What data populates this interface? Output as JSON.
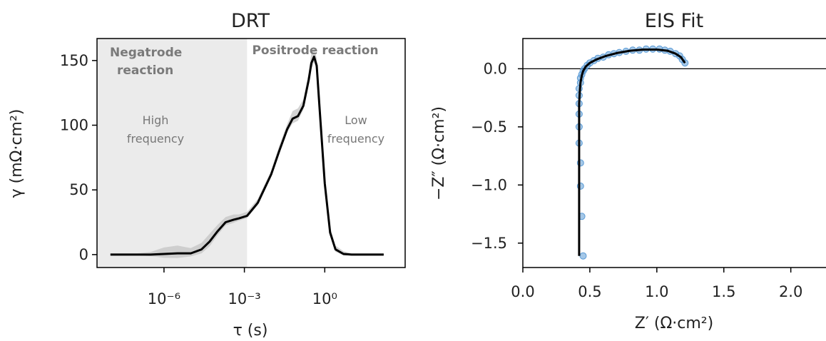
{
  "chart_data": [
    {
      "type": "line",
      "title": "DRT",
      "xlabel": "τ (s)",
      "ylabel": "γ (mΩ·cm²)",
      "xscale": "log",
      "xlim_log10": [
        -8.5,
        3
      ],
      "ylim": [
        -10,
        167
      ],
      "xticks": [
        {
          "log10": -6,
          "label": "10⁻⁶"
        },
        {
          "log10": -3,
          "label": "10⁻³"
        },
        {
          "log10": 0,
          "label": "10⁰"
        }
      ],
      "yticks": [
        0,
        50,
        100,
        150
      ],
      "regions": [
        {
          "name": "Negatrode reaction",
          "note": [
            "High",
            "frequency"
          ],
          "x_log10": [
            -8.5,
            -2.9
          ],
          "shaded": true
        },
        {
          "name": "Positrode reaction",
          "note": [
            "Low",
            "frequency"
          ],
          "x_log10": [
            -2.9,
            3
          ],
          "shaded": false
        }
      ],
      "series": [
        {
          "color": "#000000",
          "uncertainty_color": "#c4c4c4",
          "x_log10": [
            -8,
            -7,
            -6.5,
            -6,
            -5.5,
            -5,
            -4.6,
            -4.3,
            -4,
            -3.7,
            -3.4,
            -3.2,
            -2.9,
            -2.5,
            -2,
            -1.7,
            -1.4,
            -1.2,
            -1.0,
            -0.8,
            -0.6,
            -0.5,
            -0.4,
            -0.3,
            -0.2,
            0,
            0.2,
            0.4,
            0.7,
            1,
            1.5,
            2.2
          ],
          "values": [
            0,
            0,
            0,
            0.5,
            1,
            1,
            4,
            10,
            18,
            25,
            27,
            28,
            30,
            40,
            62,
            80,
            97,
            105,
            107,
            115,
            135,
            148,
            153,
            146,
            115,
            55,
            17,
            4,
            0.5,
            0,
            0,
            0
          ],
          "band": [
            1,
            1,
            2,
            5,
            6,
            4,
            5,
            6,
            5,
            4,
            4,
            3,
            3,
            3,
            3,
            4,
            4,
            6,
            6,
            5,
            6,
            8,
            7,
            6,
            6,
            5,
            4,
            3,
            2,
            1,
            1,
            1
          ]
        }
      ]
    },
    {
      "type": "scatter",
      "title": "EIS Fit",
      "xlabel": "Z′ (Ω·cm²)",
      "ylabel": "−Z″ (Ω·cm²)",
      "xlim": [
        0,
        2.3
      ],
      "ylim": [
        -1.71,
        0.26
      ],
      "xticks": [
        0.0,
        0.5,
        1.0,
        1.5,
        2.0
      ],
      "xtick_labels": [
        "0.0",
        "0.5",
        "1.0",
        "1.5",
        "2.0"
      ],
      "yticks": [
        0.0,
        -0.5,
        -1.0,
        -1.5
      ],
      "ytick_labels": [
        "0.0",
        "−0.5",
        "−1.0",
        "−1.5"
      ],
      "hline_y": 0,
      "series": [
        {
          "name": "",
          "kind": "scatter",
          "color": "#5b9bd5",
          "points": [
            [
              0.45,
              -1.61
            ],
            [
              0.44,
              -1.27
            ],
            [
              0.43,
              -1.01
            ],
            [
              0.43,
              -0.81
            ],
            [
              0.42,
              -0.64
            ],
            [
              0.42,
              -0.5
            ],
            [
              0.42,
              -0.39
            ],
            [
              0.42,
              -0.3
            ],
            [
              0.42,
              -0.23
            ],
            [
              0.42,
              -0.17
            ],
            [
              0.43,
              -0.12
            ],
            [
              0.43,
              -0.08
            ],
            [
              0.44,
              -0.05
            ],
            [
              0.45,
              -0.02
            ],
            [
              0.46,
              0.0
            ],
            [
              0.48,
              0.03
            ],
            [
              0.5,
              0.05
            ],
            [
              0.53,
              0.07
            ],
            [
              0.56,
              0.09
            ],
            [
              0.6,
              0.1
            ],
            [
              0.64,
              0.12
            ],
            [
              0.68,
              0.13
            ],
            [
              0.72,
              0.14
            ],
            [
              0.77,
              0.15
            ],
            [
              0.82,
              0.16
            ],
            [
              0.87,
              0.16
            ],
            [
              0.92,
              0.17
            ],
            [
              0.97,
              0.17
            ],
            [
              1.02,
              0.17
            ],
            [
              1.06,
              0.16
            ],
            [
              1.1,
              0.15
            ],
            [
              1.14,
              0.13
            ],
            [
              1.17,
              0.11
            ],
            [
              1.19,
              0.08
            ],
            [
              1.21,
              0.05
            ]
          ]
        },
        {
          "name": "",
          "kind": "line",
          "color": "#000000",
          "points": [
            [
              0.42,
              -1.61
            ],
            [
              0.42,
              -1.2
            ],
            [
              0.42,
              -0.8
            ],
            [
              0.42,
              -0.5
            ],
            [
              0.42,
              -0.3
            ],
            [
              0.425,
              -0.2
            ],
            [
              0.43,
              -0.12
            ],
            [
              0.44,
              -0.06
            ],
            [
              0.45,
              -0.02
            ],
            [
              0.47,
              0.02
            ],
            [
              0.5,
              0.05
            ],
            [
              0.55,
              0.08
            ],
            [
              0.62,
              0.11
            ],
            [
              0.7,
              0.135
            ],
            [
              0.8,
              0.155
            ],
            [
              0.9,
              0.165
            ],
            [
              1.0,
              0.165
            ],
            [
              1.08,
              0.155
            ],
            [
              1.14,
              0.13
            ],
            [
              1.18,
              0.1
            ],
            [
              1.21,
              0.05
            ]
          ]
        }
      ]
    }
  ]
}
